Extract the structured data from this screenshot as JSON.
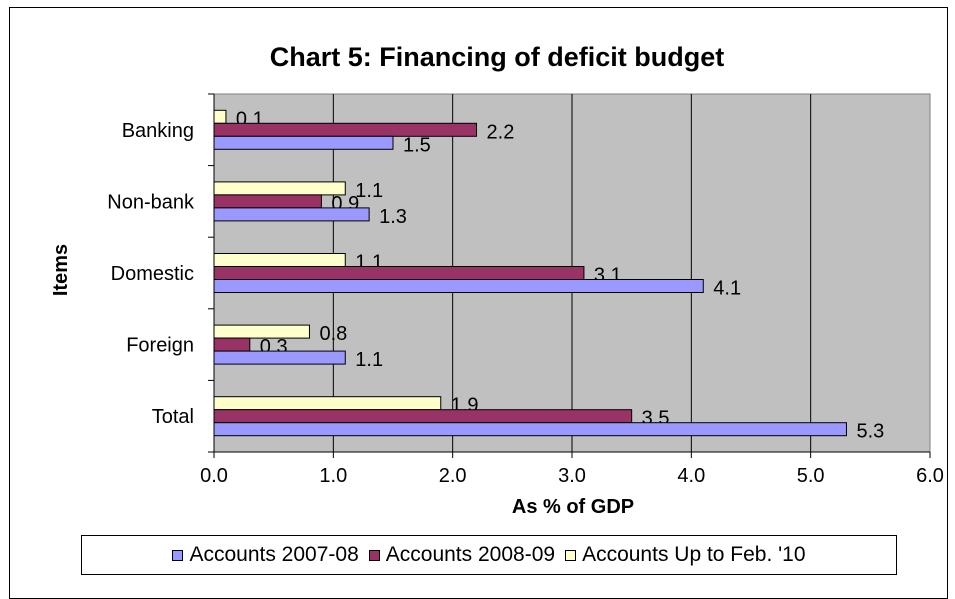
{
  "chart_data": {
    "type": "bar",
    "orientation": "horizontal",
    "title": "Chart 5: Financing of deficit budget",
    "xlabel": "As % of GDP",
    "ylabel": "Items",
    "categories": [
      "Banking",
      "Non-bank",
      "Domestic",
      "Foreign",
      "Total"
    ],
    "xlim": [
      0,
      6
    ],
    "x_ticks": [
      "0.0",
      "1.0",
      "2.0",
      "3.0",
      "4.0",
      "5.0",
      "6.0"
    ],
    "grid": "vertical",
    "legend_position": "bottom",
    "series": [
      {
        "name": "Accounts 2007-08",
        "color": "#9999ff",
        "values": [
          1.5,
          1.3,
          4.1,
          1.1,
          5.3
        ]
      },
      {
        "name": "Accounts 2008-09",
        "color": "#993366",
        "values": [
          2.2,
          0.9,
          3.1,
          0.3,
          3.5
        ]
      },
      {
        "name": "Accounts Up to Feb. '10",
        "color": "#ffffcc",
        "values": [
          0.1,
          1.1,
          1.1,
          0.8,
          1.9
        ]
      }
    ],
    "plot_background": "#c0c0c0"
  }
}
